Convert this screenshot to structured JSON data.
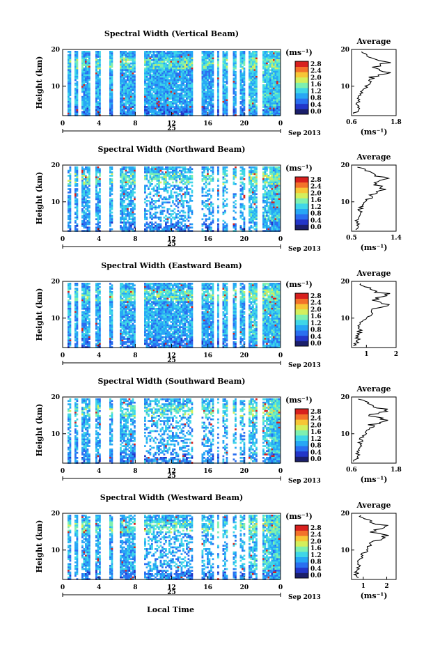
{
  "chart_data": [
    {
      "type": "heatmap",
      "title": "Spectral Width (Vertical Beam)",
      "ylabel": "Height (km)",
      "colorbar_label": "(ms⁻¹)",
      "colorbar_ticks": [
        "0.0",
        "0.4",
        "0.8",
        "1.2",
        "1.6",
        "2.0",
        "2.4",
        "2.8"
      ],
      "x_ticks": [
        "0",
        "4",
        "8",
        "12",
        "16",
        "20",
        "0"
      ],
      "date_day": "25",
      "date_label": "Sep 2013",
      "ylim": [
        2,
        20
      ],
      "y_ticks": [
        "10",
        "20"
      ],
      "avg_title": "Average",
      "avg_xlabel": "(ms⁻¹)",
      "avg_xlim": [
        0.6,
        1.8
      ],
      "avg_x_ticks": [
        "0.6",
        "1.8"
      ],
      "avg_y_ticks": [
        "10",
        "20"
      ]
    },
    {
      "type": "heatmap",
      "title": "Spectral Width (Northward Beam)",
      "ylabel": "Height (km)",
      "colorbar_label": "(ms⁻¹)",
      "colorbar_ticks": [
        "0.0",
        "0.4",
        "0.8",
        "1.2",
        "1.6",
        "2.0",
        "2.4",
        "2.8"
      ],
      "x_ticks": [
        "0",
        "4",
        "8",
        "12",
        "16",
        "20",
        "0"
      ],
      "date_day": "25",
      "date_label": "Sep 2013",
      "ylim": [
        2,
        20
      ],
      "y_ticks": [
        "10",
        "20"
      ],
      "avg_title": "Average",
      "avg_xlabel": "(ms⁻¹)",
      "avg_xlim": [
        0.5,
        1.4
      ],
      "avg_x_ticks": [
        "0.5",
        "1.4"
      ],
      "avg_y_ticks": [
        "10",
        "20"
      ]
    },
    {
      "type": "heatmap",
      "title": "Spectral Width (Eastward Beam)",
      "ylabel": "Height (km)",
      "colorbar_label": "(ms⁻¹)",
      "colorbar_ticks": [
        "0.0",
        "0.4",
        "0.8",
        "1.2",
        "1.6",
        "2.0",
        "2.4",
        "2.8"
      ],
      "x_ticks": [
        "0",
        "4",
        "8",
        "12",
        "16",
        "20",
        "0"
      ],
      "date_day": "25",
      "date_label": "Sep 2013",
      "ylim": [
        2,
        20
      ],
      "y_ticks": [
        "10",
        "20"
      ],
      "avg_title": "Average",
      "avg_xlabel": "",
      "avg_xlim": [
        0.5,
        2.0
      ],
      "avg_x_ticks": [
        "1",
        "2"
      ],
      "avg_y_ticks": [
        "10",
        "20"
      ]
    },
    {
      "type": "heatmap",
      "title": "Spectral Width (Southward Beam)",
      "ylabel": "Height (km)",
      "colorbar_label": "(ms⁻¹)",
      "colorbar_ticks": [
        "0.0",
        "0.4",
        "0.8",
        "1.2",
        "1.6",
        "2.0",
        "2.4",
        "2.8"
      ],
      "x_ticks": [
        "0",
        "4",
        "8",
        "12",
        "16",
        "20",
        "0"
      ],
      "date_day": "25",
      "date_label": "Sep 2013",
      "ylim": [
        2,
        20
      ],
      "y_ticks": [
        "10",
        "20"
      ],
      "avg_title": "Average",
      "avg_xlabel": "(ms⁻¹)",
      "avg_xlim": [
        0.6,
        1.8
      ],
      "avg_x_ticks": [
        "0.6",
        "1.8"
      ],
      "avg_y_ticks": [
        "10",
        "20"
      ]
    },
    {
      "type": "heatmap",
      "title": "Spectral Width (Westward Beam)",
      "ylabel": "Height (km)",
      "colorbar_label": "(ms⁻¹)",
      "colorbar_ticks": [
        "0.0",
        "0.4",
        "0.8",
        "1.2",
        "1.6",
        "2.0",
        "2.4",
        "2.8"
      ],
      "x_ticks": [
        "0",
        "4",
        "8",
        "12",
        "16",
        "20",
        "0"
      ],
      "date_day": "25",
      "date_label": "Sep 2013",
      "ylim": [
        2,
        20
      ],
      "y_ticks": [
        "10",
        "20"
      ],
      "avg_title": "Average",
      "avg_xlabel": "(ms⁻¹)",
      "avg_xlim": [
        0.5,
        2.4
      ],
      "avg_x_ticks": [
        "1",
        "2"
      ],
      "avg_y_ticks": [
        "10",
        "20"
      ]
    }
  ],
  "xlabel": "Local Time",
  "colormap": [
    "#1b1f6b",
    "#2336c9",
    "#2a6ff0",
    "#27a7f5",
    "#3fd6e8",
    "#7ef0b0",
    "#d4ef5c",
    "#f7c636",
    "#f3722a",
    "#d8201e"
  ],
  "gap_hours": [
    0.4,
    1.2,
    2.6,
    3.7,
    4.2,
    5.1,
    5.4,
    7.6,
    8.1,
    13.9,
    14.3,
    16.1,
    16.7,
    17.8,
    18.6,
    19.6,
    21.0
  ]
}
